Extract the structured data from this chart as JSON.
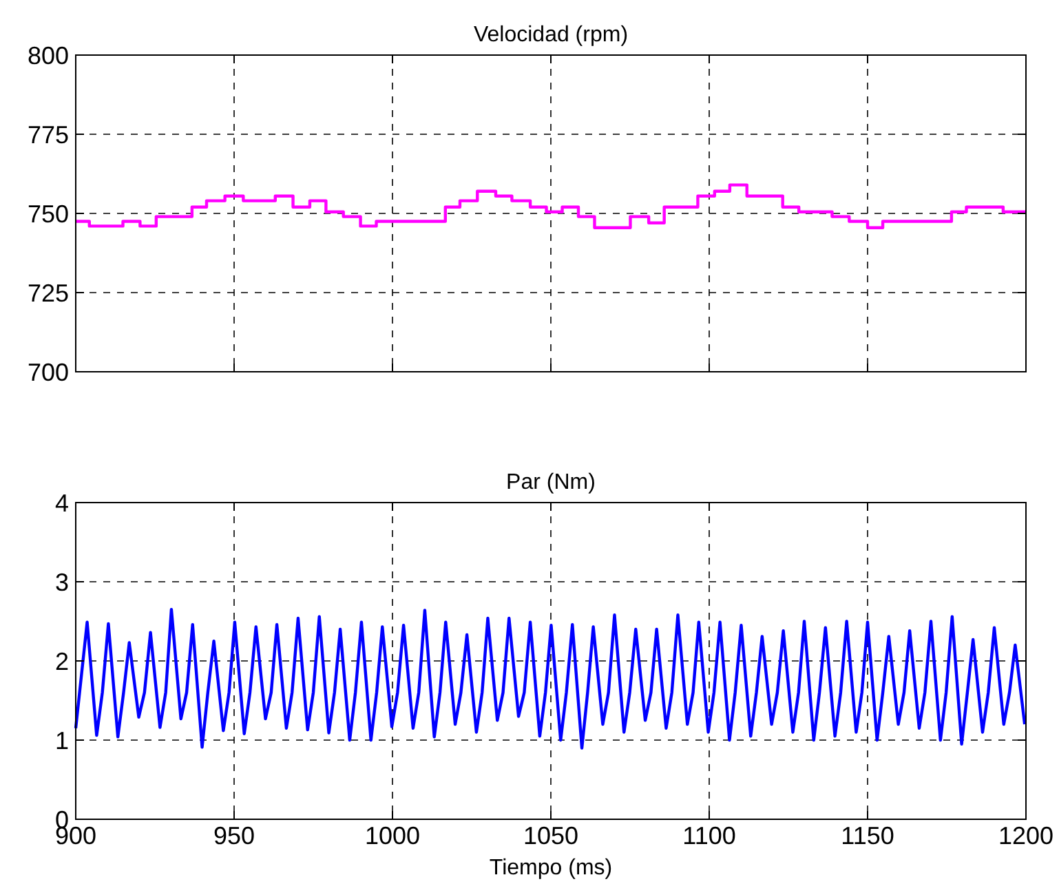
{
  "chart_data": [
    {
      "type": "step",
      "title": "Velocidad (rpm)",
      "xlim": [
        900,
        1200
      ],
      "xticks": [
        900,
        950,
        1000,
        1050,
        1100,
        1150,
        1200
      ],
      "ylim": [
        700,
        800
      ],
      "yticks": [
        700,
        725,
        750,
        775,
        800
      ],
      "grid": true,
      "tick_labels": "y",
      "series": [
        {
          "color": "#ff00ff",
          "x": [
            900,
            904.3,
            914.9,
            920.3,
            925.4,
            936.7,
            941.3,
            947.1,
            952.9,
            963,
            968.6,
            973.9,
            979,
            984.5,
            989.9,
            994.9,
            1016.7,
            1021.3,
            1026.8,
            1032.6,
            1037.7,
            1043.5,
            1048.6,
            1053.6,
            1058.7,
            1063.8,
            1075.1,
            1080.9,
            1085.8,
            1096.4,
            1101.7,
            1106.5,
            1111.9,
            1123.2,
            1128.3,
            1138.8,
            1144.2,
            1150,
            1154.8,
            1176.5,
            1181.2,
            1192.8,
            1200
          ],
          "values": [
            747.5,
            746,
            747.5,
            746,
            749,
            752,
            754,
            755.5,
            754,
            755.5,
            752,
            754,
            750.5,
            749,
            746,
            747.5,
            752,
            754,
            757,
            755.5,
            754,
            752,
            750.5,
            752,
            749,
            745.5,
            749,
            747,
            752,
            755.5,
            757,
            759,
            755.5,
            752,
            750.5,
            749,
            747.5,
            745.5,
            747.5,
            750.5,
            752,
            750.5,
            750.5
          ]
        }
      ]
    },
    {
      "type": "line",
      "title": "Par (Nm)",
      "xlabel": "Tiempo (ms)",
      "xlim": [
        900,
        1200
      ],
      "xticks": [
        900,
        950,
        1000,
        1050,
        1100,
        1150,
        1200
      ],
      "ylim": [
        0,
        4
      ],
      "yticks": [
        0,
        1,
        2,
        3,
        4
      ],
      "grid": true,
      "series": [
        {
          "color": "#0000ff",
          "x": [
            900,
            903.6,
            906.6,
            908.4,
            910.3,
            913.3,
            915.1,
            916.9,
            919.9,
            921.7,
            923.6,
            926.6,
            928.4,
            930.2,
            933.2,
            935,
            936.9,
            939.9,
            941.7,
            943.6,
            946.6,
            948.4,
            950.2,
            953.2,
            955,
            956.9,
            959.9,
            961.7,
            963.5,
            966.5,
            968.3,
            970.2,
            973.2,
            975,
            976.9,
            979.9,
            981.7,
            983.5,
            986.5,
            988.3,
            990.2,
            993.2,
            995,
            996.8,
            999.8,
            1001.6,
            1003.5,
            1006.5,
            1008.3,
            1010.2,
            1013.2,
            1015,
            1016.8,
            1019.8,
            1021.6,
            1023.5,
            1026.5,
            1028.3,
            1030.1,
            1033.1,
            1034.9,
            1036.8,
            1039.8,
            1041.6,
            1043.5,
            1046.5,
            1048.3,
            1050.1,
            1053.1,
            1054.9,
            1056.8,
            1059.8,
            1061.6,
            1063.4,
            1066.4,
            1068.2,
            1070.1,
            1073.1,
            1074.9,
            1076.8,
            1079.8,
            1081.6,
            1083.4,
            1086.4,
            1088.2,
            1090.1,
            1093.1,
            1094.9,
            1096.7,
            1099.7,
            1101.5,
            1103.4,
            1106.4,
            1108.2,
            1110.1,
            1113.1,
            1114.9,
            1116.7,
            1119.7,
            1121.5,
            1123.4,
            1126.4,
            1128.2,
            1130,
            1133,
            1134.8,
            1136.7,
            1139.7,
            1141.5,
            1143.4,
            1146.4,
            1148.2,
            1150,
            1153,
            1154.8,
            1156.7,
            1159.7,
            1161.5,
            1163.3,
            1166.3,
            1168.1,
            1170,
            1173,
            1174.8,
            1176.7,
            1179.7,
            1181.5,
            1183.3,
            1186.3,
            1188.1,
            1190,
            1193,
            1194.8,
            1196.6,
            1199.6
          ],
          "values": [
            1.15,
            2.49,
            1.06,
            1.6,
            2.47,
            1.04,
            1.6,
            2.23,
            1.29,
            1.6,
            2.36,
            1.16,
            1.6,
            2.65,
            1.27,
            1.6,
            2.46,
            0.91,
            1.6,
            2.25,
            1.12,
            1.6,
            2.49,
            1.08,
            1.6,
            2.43,
            1.27,
            1.6,
            2.46,
            1.15,
            1.6,
            2.54,
            1.13,
            1.6,
            2.56,
            1.09,
            1.6,
            2.4,
            1,
            1.6,
            2.49,
            1,
            1.6,
            2.43,
            1.17,
            1.6,
            2.45,
            1.15,
            1.6,
            2.64,
            1.04,
            1.6,
            2.49,
            1.2,
            1.6,
            2.33,
            1.1,
            1.6,
            2.54,
            1.25,
            1.6,
            2.54,
            1.3,
            1.6,
            2.49,
            1.05,
            1.6,
            2.45,
            1,
            1.6,
            2.46,
            0.9,
            1.6,
            2.43,
            1.2,
            1.6,
            2.58,
            1.1,
            1.6,
            2.4,
            1.25,
            1.6,
            2.4,
            1.15,
            1.6,
            2.58,
            1.2,
            1.6,
            2.49,
            1.1,
            1.6,
            2.49,
            1,
            1.6,
            2.45,
            1.05,
            1.6,
            2.31,
            1.2,
            1.6,
            2.38,
            1.1,
            1.6,
            2.5,
            1,
            1.6,
            2.42,
            1.05,
            1.6,
            2.5,
            1.1,
            1.6,
            2.49,
            1,
            1.6,
            2.31,
            1.2,
            1.6,
            2.38,
            1.15,
            1.6,
            2.5,
            1,
            1.6,
            2.56,
            0.95,
            1.6,
            2.27,
            1.1,
            1.6,
            2.42,
            1.2,
            1.6,
            2.2,
            1.2
          ]
        }
      ]
    }
  ]
}
